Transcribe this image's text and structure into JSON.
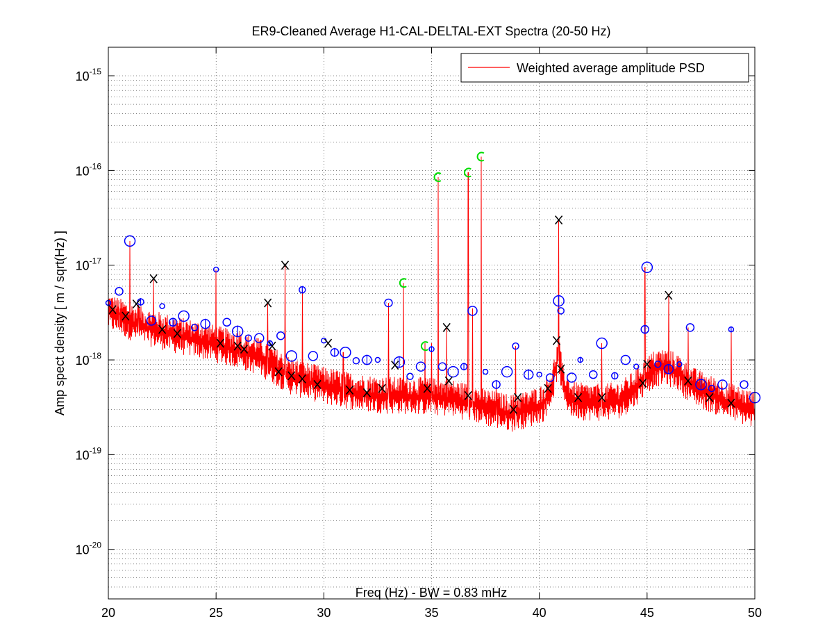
{
  "chart_data": {
    "type": "line",
    "title": "ER9-Cleaned Average H1-CAL-DELTAL-EXT Spectra (20-50 Hz)",
    "xlabel": "Freq (Hz) - BW = 0.83 mHz",
    "ylabel": "Amp spect density [ m / sqrt(Hz) ]",
    "xlim": [
      20,
      50
    ],
    "ylim": [
      3e-21,
      2e-15
    ],
    "yscale": "log",
    "grid": true,
    "legend_position": "top-right",
    "x_ticks": [
      20,
      25,
      30,
      35,
      40,
      45,
      50
    ],
    "x_tick_labels": [
      "20",
      "25",
      "30",
      "35",
      "40",
      "45",
      "50"
    ],
    "y_ticks": [
      1e-20,
      1e-19,
      1e-18,
      1e-17,
      1e-16,
      1e-15
    ],
    "y_tick_labels": [
      {
        "base": "10",
        "exp": "-20"
      },
      {
        "base": "10",
        "exp": "-19"
      },
      {
        "base": "10",
        "exp": "-18"
      },
      {
        "base": "10",
        "exp": "-17"
      },
      {
        "base": "10",
        "exp": "-16"
      },
      {
        "base": "10",
        "exp": "-15"
      }
    ],
    "colors": {
      "series": "#ff0000",
      "blue_marker": "#0000ff",
      "green_marker": "#00dd00",
      "black_marker": "#000000"
    },
    "series": [
      {
        "name": "Weighted average amplitude PSD",
        "color": "#ff0000",
        "baseline": [
          [
            20,
            3.3e-18
          ],
          [
            21,
            2.6e-18
          ],
          [
            22,
            2.2e-18
          ],
          [
            23,
            1.9e-18
          ],
          [
            24,
            1.7e-18
          ],
          [
            25,
            1.5e-18
          ],
          [
            26,
            1.3e-18
          ],
          [
            27,
            1.1e-18
          ],
          [
            27.8,
            8.5e-19
          ],
          [
            28.5,
            6.8e-19
          ],
          [
            30,
            5.5e-19
          ],
          [
            31,
            4.9e-19
          ],
          [
            32,
            4.5e-19
          ],
          [
            33,
            4.3e-19
          ],
          [
            34,
            4.3e-19
          ],
          [
            35,
            4.2e-19
          ],
          [
            36,
            4e-19
          ],
          [
            37,
            3.5e-19
          ],
          [
            38,
            3e-19
          ],
          [
            38.7,
            2.8e-19
          ],
          [
            39.5,
            3.1e-19
          ],
          [
            40.2,
            3.6e-19
          ],
          [
            40.6,
            5.5e-19
          ],
          [
            40.9,
            1.2e-18
          ],
          [
            41.1,
            5.5e-19
          ],
          [
            41.5,
            3.9e-19
          ],
          [
            42,
            3.7e-19
          ],
          [
            43,
            3.6e-19
          ],
          [
            43.8,
            3.9e-19
          ],
          [
            44.4,
            5e-19
          ],
          [
            44.9,
            6.8e-19
          ],
          [
            45.4,
            8.4e-19
          ],
          [
            45.9,
            8.6e-19
          ],
          [
            46.5,
            7.4e-19
          ],
          [
            47,
            5.6e-19
          ],
          [
            48,
            4.4e-19
          ],
          [
            49,
            3.6e-19
          ],
          [
            50,
            3e-19
          ]
        ],
        "peaks": [
          [
            20.1,
            3.5e-18
          ],
          [
            20.5,
            3e-18
          ],
          [
            21.0,
            1.8e-17
          ],
          [
            21.4,
            3.8e-18
          ],
          [
            22.1,
            7e-18
          ],
          [
            22.7,
            2.5e-18
          ],
          [
            25.0,
            9e-18
          ],
          [
            26.1,
            2e-18
          ],
          [
            26.9,
            1.7e-18
          ],
          [
            27.4,
            4e-18
          ],
          [
            28.2,
            1e-17
          ],
          [
            29.0,
            5.5e-18
          ],
          [
            30.9,
            1.2e-18
          ],
          [
            33.0,
            4e-18
          ],
          [
            33.7,
            6.5e-18
          ],
          [
            34.7,
            1.5e-18
          ],
          [
            35.0,
            1.5e-18
          ],
          [
            35.3,
            8.5e-17
          ],
          [
            35.7,
            2.2e-18
          ],
          [
            36.7,
            9.5e-17
          ],
          [
            36.9,
            3.5e-18
          ],
          [
            37.3,
            1.4e-16
          ],
          [
            38.0,
            5.5e-19
          ],
          [
            38.9,
            1.4e-18
          ],
          [
            40.9,
            3e-17
          ],
          [
            42.9,
            1.5e-18
          ],
          [
            44.9,
            9.5e-18
          ],
          [
            46.0,
            5e-18
          ],
          [
            46.9,
            2.2e-18
          ],
          [
            48.9,
            2.1e-18
          ]
        ]
      }
    ],
    "markers": {
      "green_circles": [
        [
          33.7,
          6.5e-18
        ],
        [
          34.7,
          1.4e-18
        ],
        [
          35.3,
          8.5e-17
        ],
        [
          36.7,
          9.5e-17
        ],
        [
          37.3,
          1.4e-16
        ]
      ],
      "blue_marker_points": [
        [
          20.0,
          4e-18
        ],
        [
          20.5,
          5.3e-18
        ],
        [
          21.0,
          1.8e-17
        ],
        [
          21.5,
          4.1e-18
        ],
        [
          22.0,
          2.6e-18
        ],
        [
          22.5,
          3.7e-18
        ],
        [
          23.0,
          2.5e-18
        ],
        [
          23.5,
          2.9e-18
        ],
        [
          24.0,
          2.2e-18
        ],
        [
          24.5,
          2.4e-18
        ],
        [
          25.0,
          9e-18
        ],
        [
          25.5,
          2.5e-18
        ],
        [
          26.0,
          2e-18
        ],
        [
          26.5,
          1.7e-18
        ],
        [
          27.0,
          1.7e-18
        ],
        [
          27.5,
          1.5e-18
        ],
        [
          28.0,
          1.8e-18
        ],
        [
          28.5,
          1.1e-18
        ],
        [
          29.0,
          5.5e-18
        ],
        [
          29.5,
          1.1e-18
        ],
        [
          30.0,
          1.6e-18
        ],
        [
          30.5,
          1.2e-18
        ],
        [
          31.0,
          1.2e-18
        ],
        [
          31.5,
          9.8e-19
        ],
        [
          32.0,
          1e-18
        ],
        [
          32.5,
          1e-18
        ],
        [
          33.0,
          4e-18
        ],
        [
          33.5,
          9.5e-19
        ],
        [
          34.0,
          6.7e-19
        ],
        [
          34.5,
          8.5e-19
        ],
        [
          35.0,
          1.3e-18
        ],
        [
          35.5,
          8.5e-19
        ],
        [
          36.0,
          7.5e-19
        ],
        [
          36.5,
          8.5e-19
        ],
        [
          36.9,
          3.3e-18
        ],
        [
          37.5,
          7.5e-19
        ],
        [
          38.0,
          5.5e-19
        ],
        [
          38.5,
          7.5e-19
        ],
        [
          38.9,
          1.4e-18
        ],
        [
          39.5,
          7e-19
        ],
        [
          40.0,
          7e-19
        ],
        [
          40.5,
          6.5e-19
        ],
        [
          40.9,
          4.2e-18
        ],
        [
          41.0,
          3.3e-18
        ],
        [
          41.5,
          6.5e-19
        ],
        [
          41.9,
          1e-18
        ],
        [
          42.5,
          7e-19
        ],
        [
          42.9,
          1.5e-18
        ],
        [
          43.5,
          6.8e-19
        ],
        [
          44.0,
          1e-18
        ],
        [
          44.5,
          8.5e-19
        ],
        [
          44.9,
          2.1e-18
        ],
        [
          45.0,
          9.5e-18
        ],
        [
          45.5,
          9e-19
        ],
        [
          46.0,
          8e-19
        ],
        [
          46.5,
          9e-19
        ],
        [
          47.0,
          2.2e-18
        ],
        [
          47.5,
          5.5e-19
        ],
        [
          48.0,
          5e-19
        ],
        [
          48.5,
          5.5e-19
        ],
        [
          48.9,
          2.1e-18
        ],
        [
          49.5,
          5.5e-19
        ],
        [
          50.0,
          4e-19
        ]
      ],
      "black_x": [
        [
          20.2,
          3.4e-18
        ],
        [
          20.8,
          2.9e-18
        ],
        [
          21.3,
          3.9e-18
        ],
        [
          22.1,
          7.2e-18
        ],
        [
          22.5,
          2.1e-18
        ],
        [
          23.2,
          1.9e-18
        ],
        [
          25.2,
          1.5e-18
        ],
        [
          26.0,
          1.4e-18
        ],
        [
          26.3,
          1.3e-18
        ],
        [
          27.4,
          4e-18
        ],
        [
          27.6,
          1.4e-18
        ],
        [
          27.9,
          7.5e-19
        ],
        [
          28.2,
          1e-17
        ],
        [
          28.5,
          6.8e-19
        ],
        [
          29.0,
          6.3e-19
        ],
        [
          29.7,
          5.5e-19
        ],
        [
          30.2,
          1.5e-18
        ],
        [
          31.2,
          4.8e-19
        ],
        [
          32.0,
          4.5e-19
        ],
        [
          32.7,
          5e-19
        ],
        [
          33.3,
          8.8e-19
        ],
        [
          34.8,
          5e-19
        ],
        [
          35.7,
          2.2e-18
        ],
        [
          35.8,
          6e-19
        ],
        [
          36.7,
          4.2e-19
        ],
        [
          38.8,
          3e-19
        ],
        [
          39.0,
          4e-19
        ],
        [
          40.4,
          5e-19
        ],
        [
          40.9,
          3e-17
        ],
        [
          41.0,
          8e-19
        ],
        [
          40.8,
          1.6e-18
        ],
        [
          41.8,
          4e-19
        ],
        [
          42.9,
          4e-19
        ],
        [
          44.8,
          5.7e-19
        ],
        [
          45.0,
          9e-19
        ],
        [
          46.0,
          4.8e-18
        ],
        [
          46.9,
          6e-19
        ],
        [
          47.9,
          4e-19
        ],
        [
          48.9,
          3.5e-19
        ]
      ]
    }
  }
}
